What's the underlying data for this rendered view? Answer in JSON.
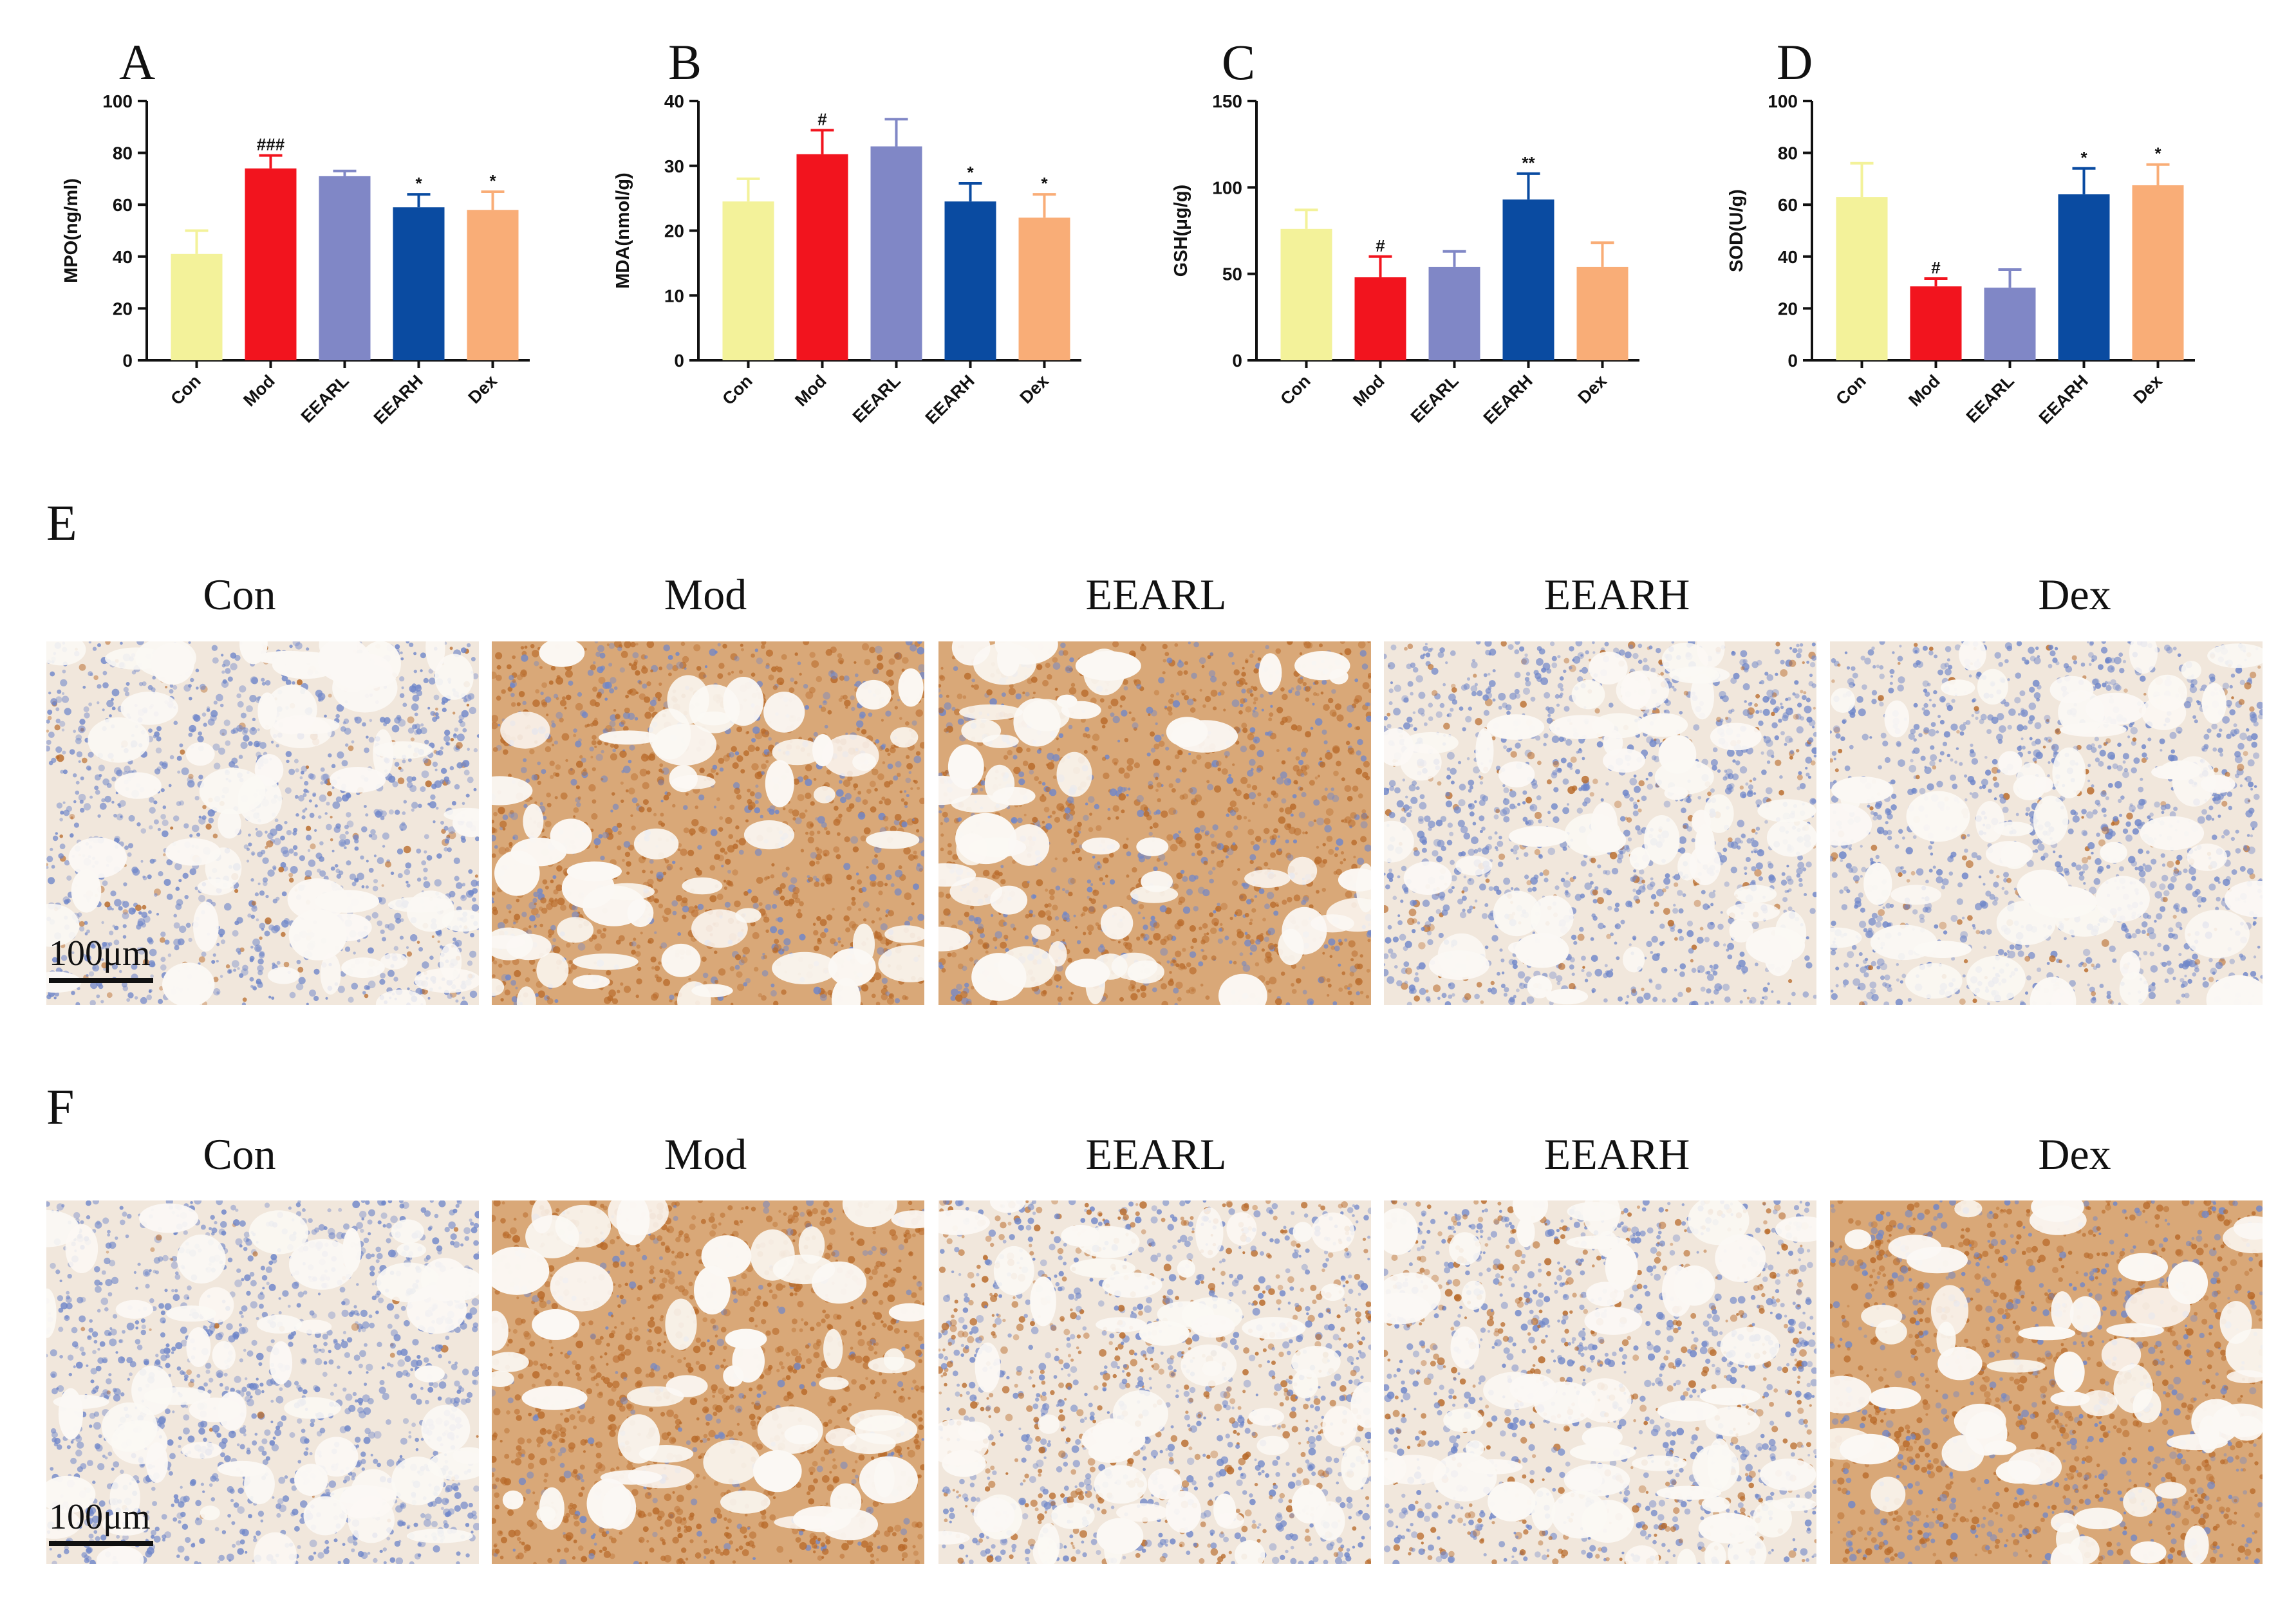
{
  "panels_bar": [
    "A",
    "B",
    "C",
    "D"
  ],
  "chart_data": [
    {
      "type": "bar",
      "panel": "A",
      "categories": [
        "Con",
        "Mod",
        "EEARL",
        "EEARH",
        "Dex"
      ],
      "values": [
        41,
        74,
        71,
        59,
        58
      ],
      "errors": [
        9,
        5,
        2,
        5,
        7
      ],
      "annotations": [
        "",
        "###",
        "",
        "*",
        "*"
      ],
      "colors": [
        "#f3f29a",
        "#f2141e",
        "#8087c6",
        "#0a4ba1",
        "#f9ad77"
      ],
      "ylabel": "MPO(ng/ml)",
      "ylim": [
        0,
        100
      ],
      "yticks": [
        0,
        20,
        40,
        60,
        80,
        100
      ]
    },
    {
      "type": "bar",
      "panel": "B",
      "categories": [
        "Con",
        "Mod",
        "EEARL",
        "EEARH",
        "Dex"
      ],
      "values": [
        24.5,
        31.8,
        33,
        24.5,
        22
      ],
      "errors": [
        3.5,
        3.7,
        4.2,
        2.8,
        3.6
      ],
      "annotations": [
        "",
        "#",
        "",
        "*",
        "*"
      ],
      "colors": [
        "#f3f29a",
        "#f2141e",
        "#8087c6",
        "#0a4ba1",
        "#f9ad77"
      ],
      "ylabel": "MDA(nmol/g)",
      "ylim": [
        0,
        40
      ],
      "yticks": [
        0,
        10,
        20,
        30,
        40
      ]
    },
    {
      "type": "bar",
      "panel": "C",
      "categories": [
        "Con",
        "Mod",
        "EEARL",
        "EEARH",
        "Dex"
      ],
      "values": [
        76,
        48,
        54,
        93,
        54
      ],
      "errors": [
        11,
        12,
        9,
        15,
        14
      ],
      "annotations": [
        "",
        "#",
        "",
        "**",
        ""
      ],
      "colors": [
        "#f3f29a",
        "#f2141e",
        "#8087c6",
        "#0a4ba1",
        "#f9ad77"
      ],
      "ylabel": "GSH(μg/g)",
      "ylim": [
        0,
        150
      ],
      "yticks": [
        0,
        50,
        100,
        150
      ]
    },
    {
      "type": "bar",
      "panel": "D",
      "categories": [
        "Con",
        "Mod",
        "EEARL",
        "EEARH",
        "Dex"
      ],
      "values": [
        63,
        28.5,
        28,
        64,
        67.5
      ],
      "errors": [
        13,
        3,
        7,
        10,
        8
      ],
      "annotations": [
        "",
        "#",
        "",
        "*",
        "*"
      ],
      "colors": [
        "#f3f29a",
        "#f2141e",
        "#8087c6",
        "#0a4ba1",
        "#f9ad77"
      ],
      "ylabel": "SOD(U/g)",
      "ylim": [
        0,
        100
      ],
      "yticks": [
        0,
        20,
        40,
        60,
        80,
        100
      ]
    }
  ],
  "rows": [
    {
      "letter": "E",
      "groups": [
        "Con",
        "Mod",
        "EEARL",
        "EEARH",
        "Dex"
      ],
      "scalebar": "100μm",
      "stain_level": [
        0.12,
        0.7,
        0.6,
        0.14,
        0.1
      ]
    },
    {
      "letter": "F",
      "groups": [
        "Con",
        "Mod",
        "EEARL",
        "EEARH",
        "Dex"
      ],
      "scalebar": "100μm",
      "stain_level": [
        0.02,
        0.85,
        0.4,
        0.35,
        0.55
      ]
    }
  ],
  "colors": {
    "background_tissue": "#f6efe6",
    "hematoxylin": "#6f86c9",
    "dab": "#b86a2a"
  }
}
